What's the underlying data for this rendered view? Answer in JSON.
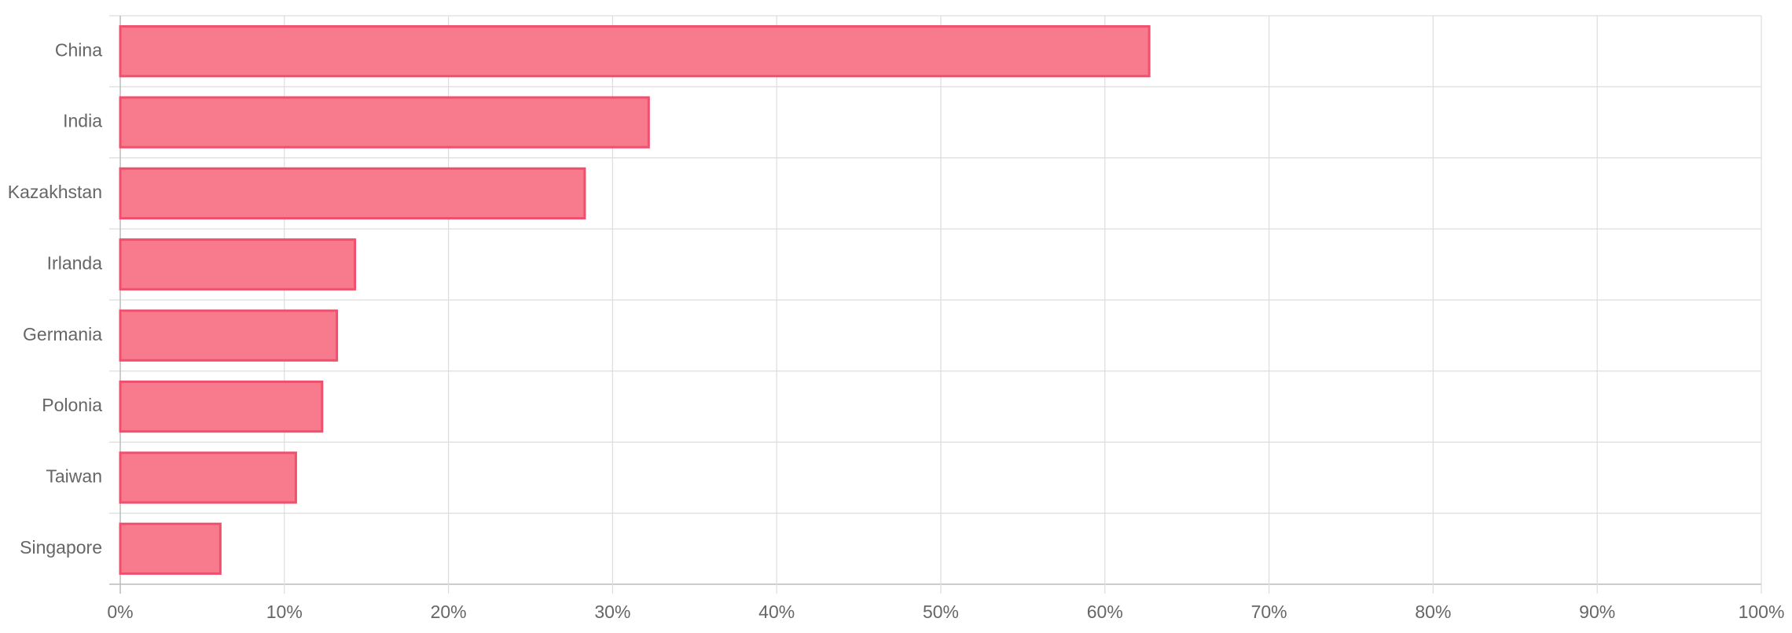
{
  "chart_data": {
    "type": "bar",
    "orientation": "horizontal",
    "categories": [
      "China",
      "India",
      "Kazakhstan",
      "Irlanda",
      "Germania",
      "Polonia",
      "Taiwan",
      "Singapore"
    ],
    "values": [
      62.7,
      32.2,
      28.3,
      14.3,
      13.2,
      12.3,
      10.7,
      6.1
    ],
    "color": "#f77b8c",
    "border_color": "#f0506e",
    "xlim": [
      0,
      100
    ],
    "xticks": [
      {
        "value": 0,
        "label": "0%"
      },
      {
        "value": 10,
        "label": "10%"
      },
      {
        "value": 20,
        "label": "20%"
      },
      {
        "value": 30,
        "label": "30%"
      },
      {
        "value": 40,
        "label": "40%"
      },
      {
        "value": 50,
        "label": "50%"
      },
      {
        "value": 60,
        "label": "60%"
      },
      {
        "value": 70,
        "label": "70%"
      },
      {
        "value": 80,
        "label": "80%"
      },
      {
        "value": 90,
        "label": "90%"
      },
      {
        "value": 100,
        "label": "100%"
      }
    ],
    "grid": true
  }
}
